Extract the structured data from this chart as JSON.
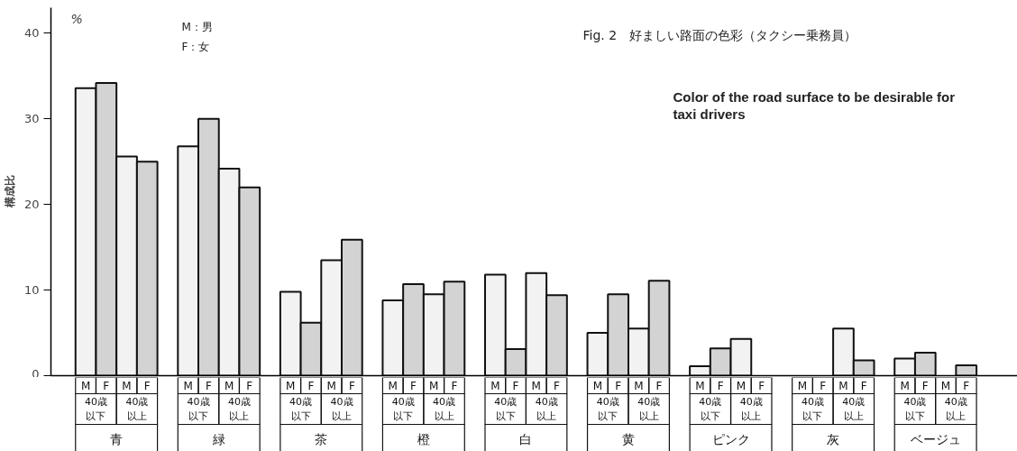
{
  "chart_data": {
    "type": "bar",
    "title": "Fig. 2　好ましい路面の色彩（タクシー乗務員）",
    "subtitle": "Color of the road surface to be desirable for taxi drivers",
    "ylabel": "構成比",
    "annotations": [
      "%",
      "M：男",
      "F：女",
      "40歳",
      "以下",
      "以上"
    ],
    "categories": [
      "青",
      "緑",
      "茶",
      "橙",
      "白",
      "黄",
      "ピンク",
      "灰",
      "ベージュ"
    ],
    "series": [
      {
        "name": "M",
        "color": "#f2f2f2",
        "values": [
          33.6,
          26.8,
          9.8,
          8.8,
          11.8,
          5.0,
          1.1,
          null,
          2.0
        ]
      },
      {
        "name": "F",
        "color": "#d3d3d3",
        "values": [
          34.2,
          30.0,
          6.2,
          10.7,
          3.1,
          9.5,
          3.2,
          null,
          2.7
        ]
      },
      {
        "name": "M",
        "color": "#f2f2f2",
        "values": [
          25.6,
          24.2,
          13.5,
          9.5,
          12.0,
          5.5,
          4.3,
          5.5,
          null
        ]
      },
      {
        "name": "F",
        "color": "#d3d3d3",
        "values": [
          25.0,
          22.0,
          15.9,
          11.0,
          9.4,
          11.1,
          null,
          1.8,
          1.2
        ]
      }
    ],
    "ylim": [
      0,
      43
    ],
    "yticks": [
      0,
      10,
      20,
      30,
      40
    ],
    "grid": false,
    "legend": "bottom"
  }
}
